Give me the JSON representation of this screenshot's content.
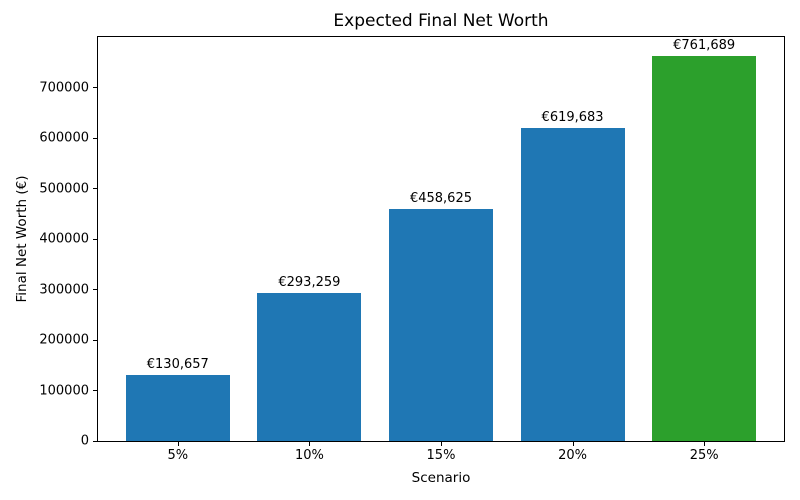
{
  "chart_data": {
    "type": "bar",
    "title": "Expected Final Net Worth",
    "xlabel": "Scenario",
    "ylabel": "Final Net Worth (€)",
    "categories": [
      "5%",
      "10%",
      "15%",
      "20%",
      "25%"
    ],
    "values": [
      130657,
      293259,
      458625,
      619683,
      761689
    ],
    "value_labels": [
      "€130,657",
      "€293,259",
      "€458,625",
      "€619,683",
      "€761,689"
    ],
    "bar_colors": [
      "#1f77b4",
      "#1f77b4",
      "#1f77b4",
      "#1f77b4",
      "#2ca02c"
    ],
    "ylim": [
      0,
      800000
    ],
    "yticks": [
      0,
      100000,
      200000,
      300000,
      400000,
      500000,
      600000,
      700000
    ],
    "ytick_labels": [
      "0",
      "100000",
      "200000",
      "300000",
      "400000",
      "500000",
      "600000",
      "700000"
    ],
    "grid": false,
    "legend_position": "none"
  },
  "colors": {
    "bar_blue": "#1f77b4",
    "bar_green": "#2ca02c",
    "spine": "#000000",
    "text": "#000000",
    "background": "#ffffff"
  }
}
